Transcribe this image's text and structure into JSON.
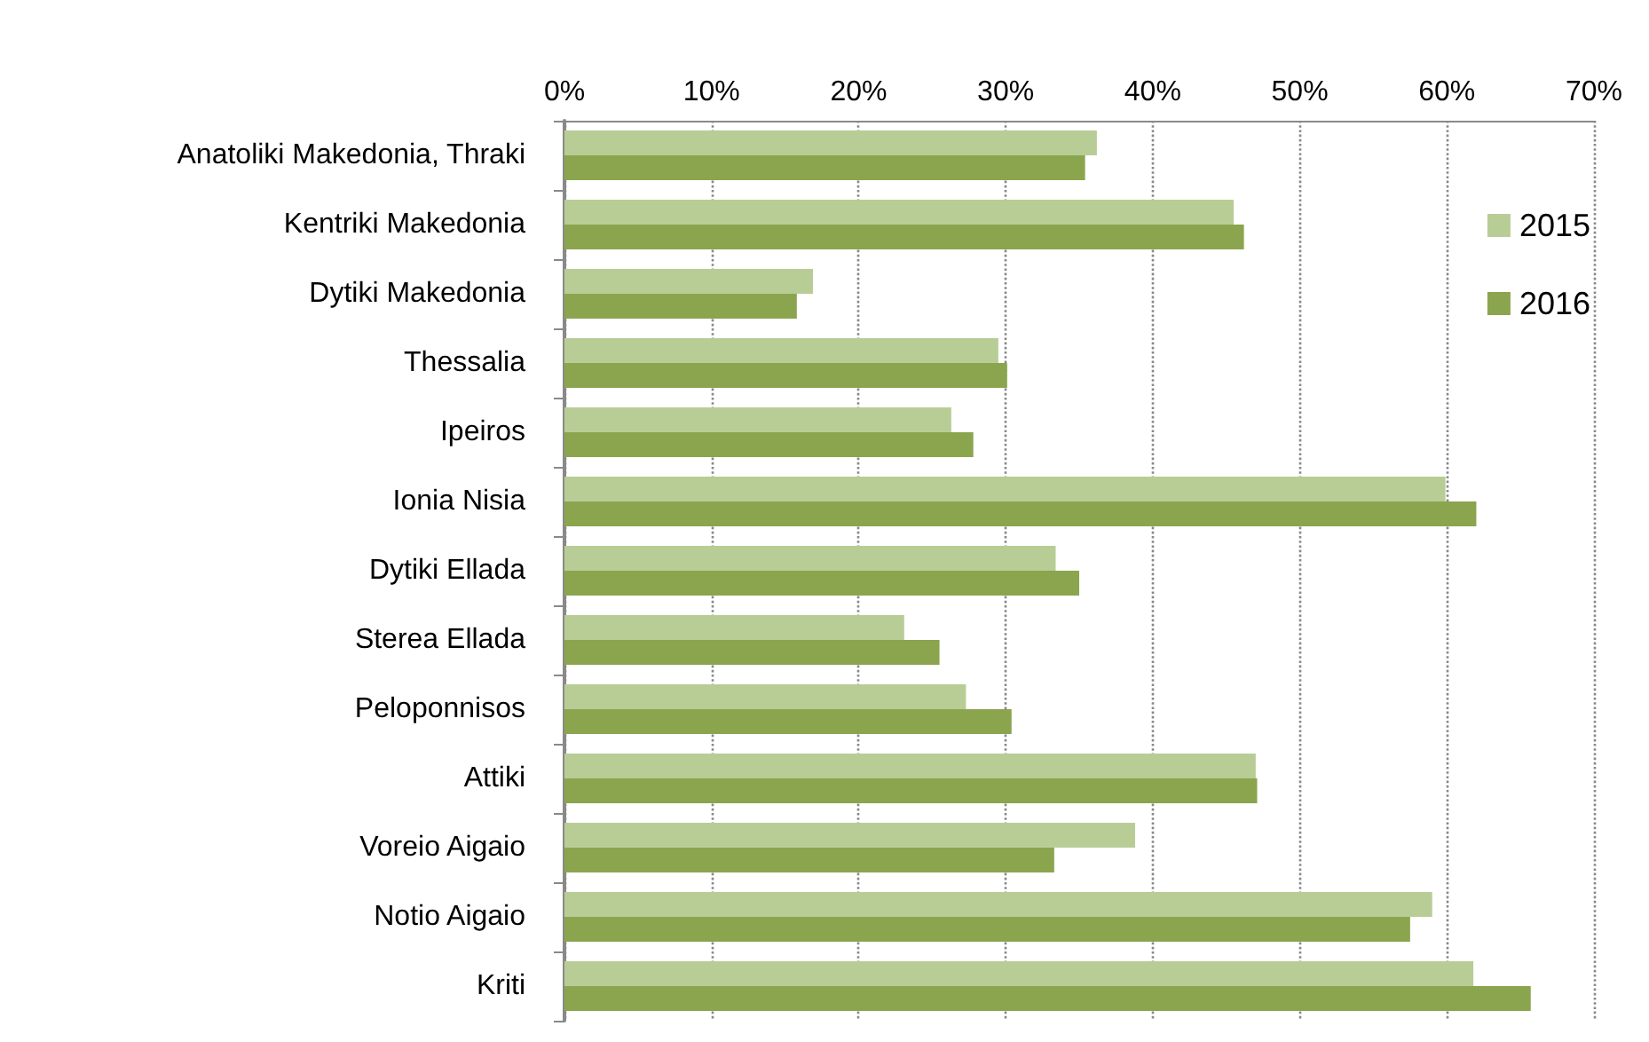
{
  "chart_data": {
    "type": "bar",
    "orientation": "horizontal",
    "categories": [
      "Anatoliki Makedonia, Thraki",
      "Kentriki Makedonia",
      "Dytiki Makedonia",
      "Thessalia",
      "Ipeiros",
      "Ionia Nisia",
      "Dytiki Ellada",
      "Sterea Ellada",
      "Peloponnisos",
      "Attiki",
      "Voreio Aigaio",
      "Notio Aigaio",
      "Kriti"
    ],
    "series": [
      {
        "name": "2015",
        "color": "#b8cd96",
        "values": [
          36.2,
          45.5,
          16.9,
          29.5,
          26.3,
          59.9,
          33.4,
          23.1,
          27.3,
          47.0,
          38.8,
          59.0,
          61.8
        ]
      },
      {
        "name": "2016",
        "color": "#8aa54e",
        "values": [
          35.4,
          46.2,
          15.8,
          30.1,
          27.8,
          62.0,
          35.0,
          25.5,
          30.4,
          47.1,
          33.3,
          57.5,
          65.7
        ]
      }
    ],
    "xlim": [
      0,
      70
    ],
    "xticks": [
      {
        "value": 0,
        "label": "0%"
      },
      {
        "value": 10,
        "label": "10%"
      },
      {
        "value": 20,
        "label": "20%"
      },
      {
        "value": 30,
        "label": "30%"
      },
      {
        "value": 40,
        "label": "40%"
      },
      {
        "value": 50,
        "label": "50%"
      },
      {
        "value": 60,
        "label": "60%"
      },
      {
        "value": 70,
        "label": "70%"
      }
    ],
    "grid": "x",
    "legend": "top right"
  }
}
